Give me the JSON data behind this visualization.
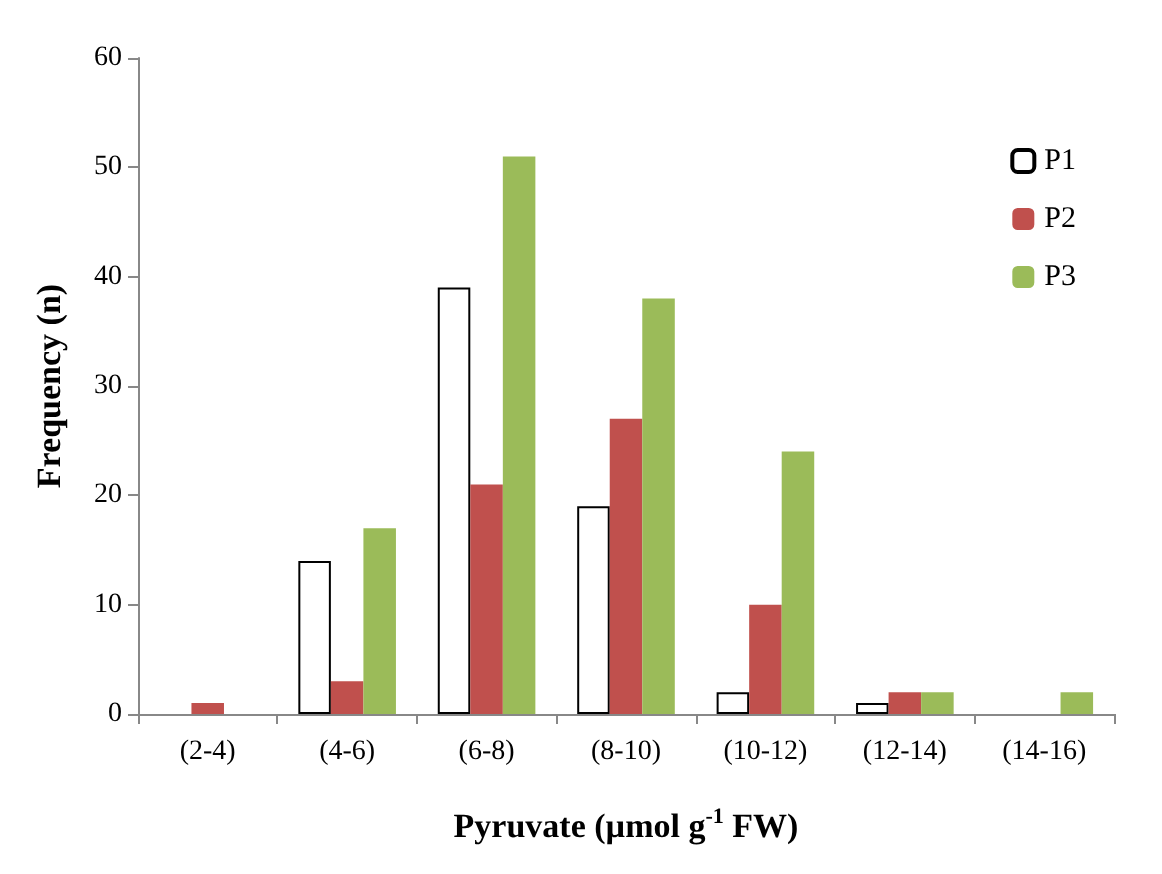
{
  "chart_data": {
    "type": "bar",
    "xlabel": "Pyruvate (µmol g$^{-1}$ FW)",
    "ylabel": "Frequency (n)",
    "categories": [
      "(2-4)",
      "(4-6)",
      "(6-8)",
      "(8-10)",
      "(10-12)",
      "(12-14)",
      "(14-16)"
    ],
    "series": [
      {
        "name": "P1",
        "color": "#ffffff",
        "values": [
          0,
          14,
          39,
          19,
          2,
          1,
          0
        ]
      },
      {
        "name": "P2",
        "color": "#c0504d",
        "values": [
          1,
          3,
          21,
          27,
          10,
          2,
          0
        ]
      },
      {
        "name": "P3",
        "color": "#9bbb59",
        "values": [
          0,
          17,
          51,
          38,
          24,
          2,
          2
        ]
      }
    ],
    "ylim": [
      0,
      60
    ],
    "yticks": [
      0,
      10,
      20,
      30,
      40,
      50,
      60
    ],
    "grid": false,
    "legend": "top right"
  }
}
